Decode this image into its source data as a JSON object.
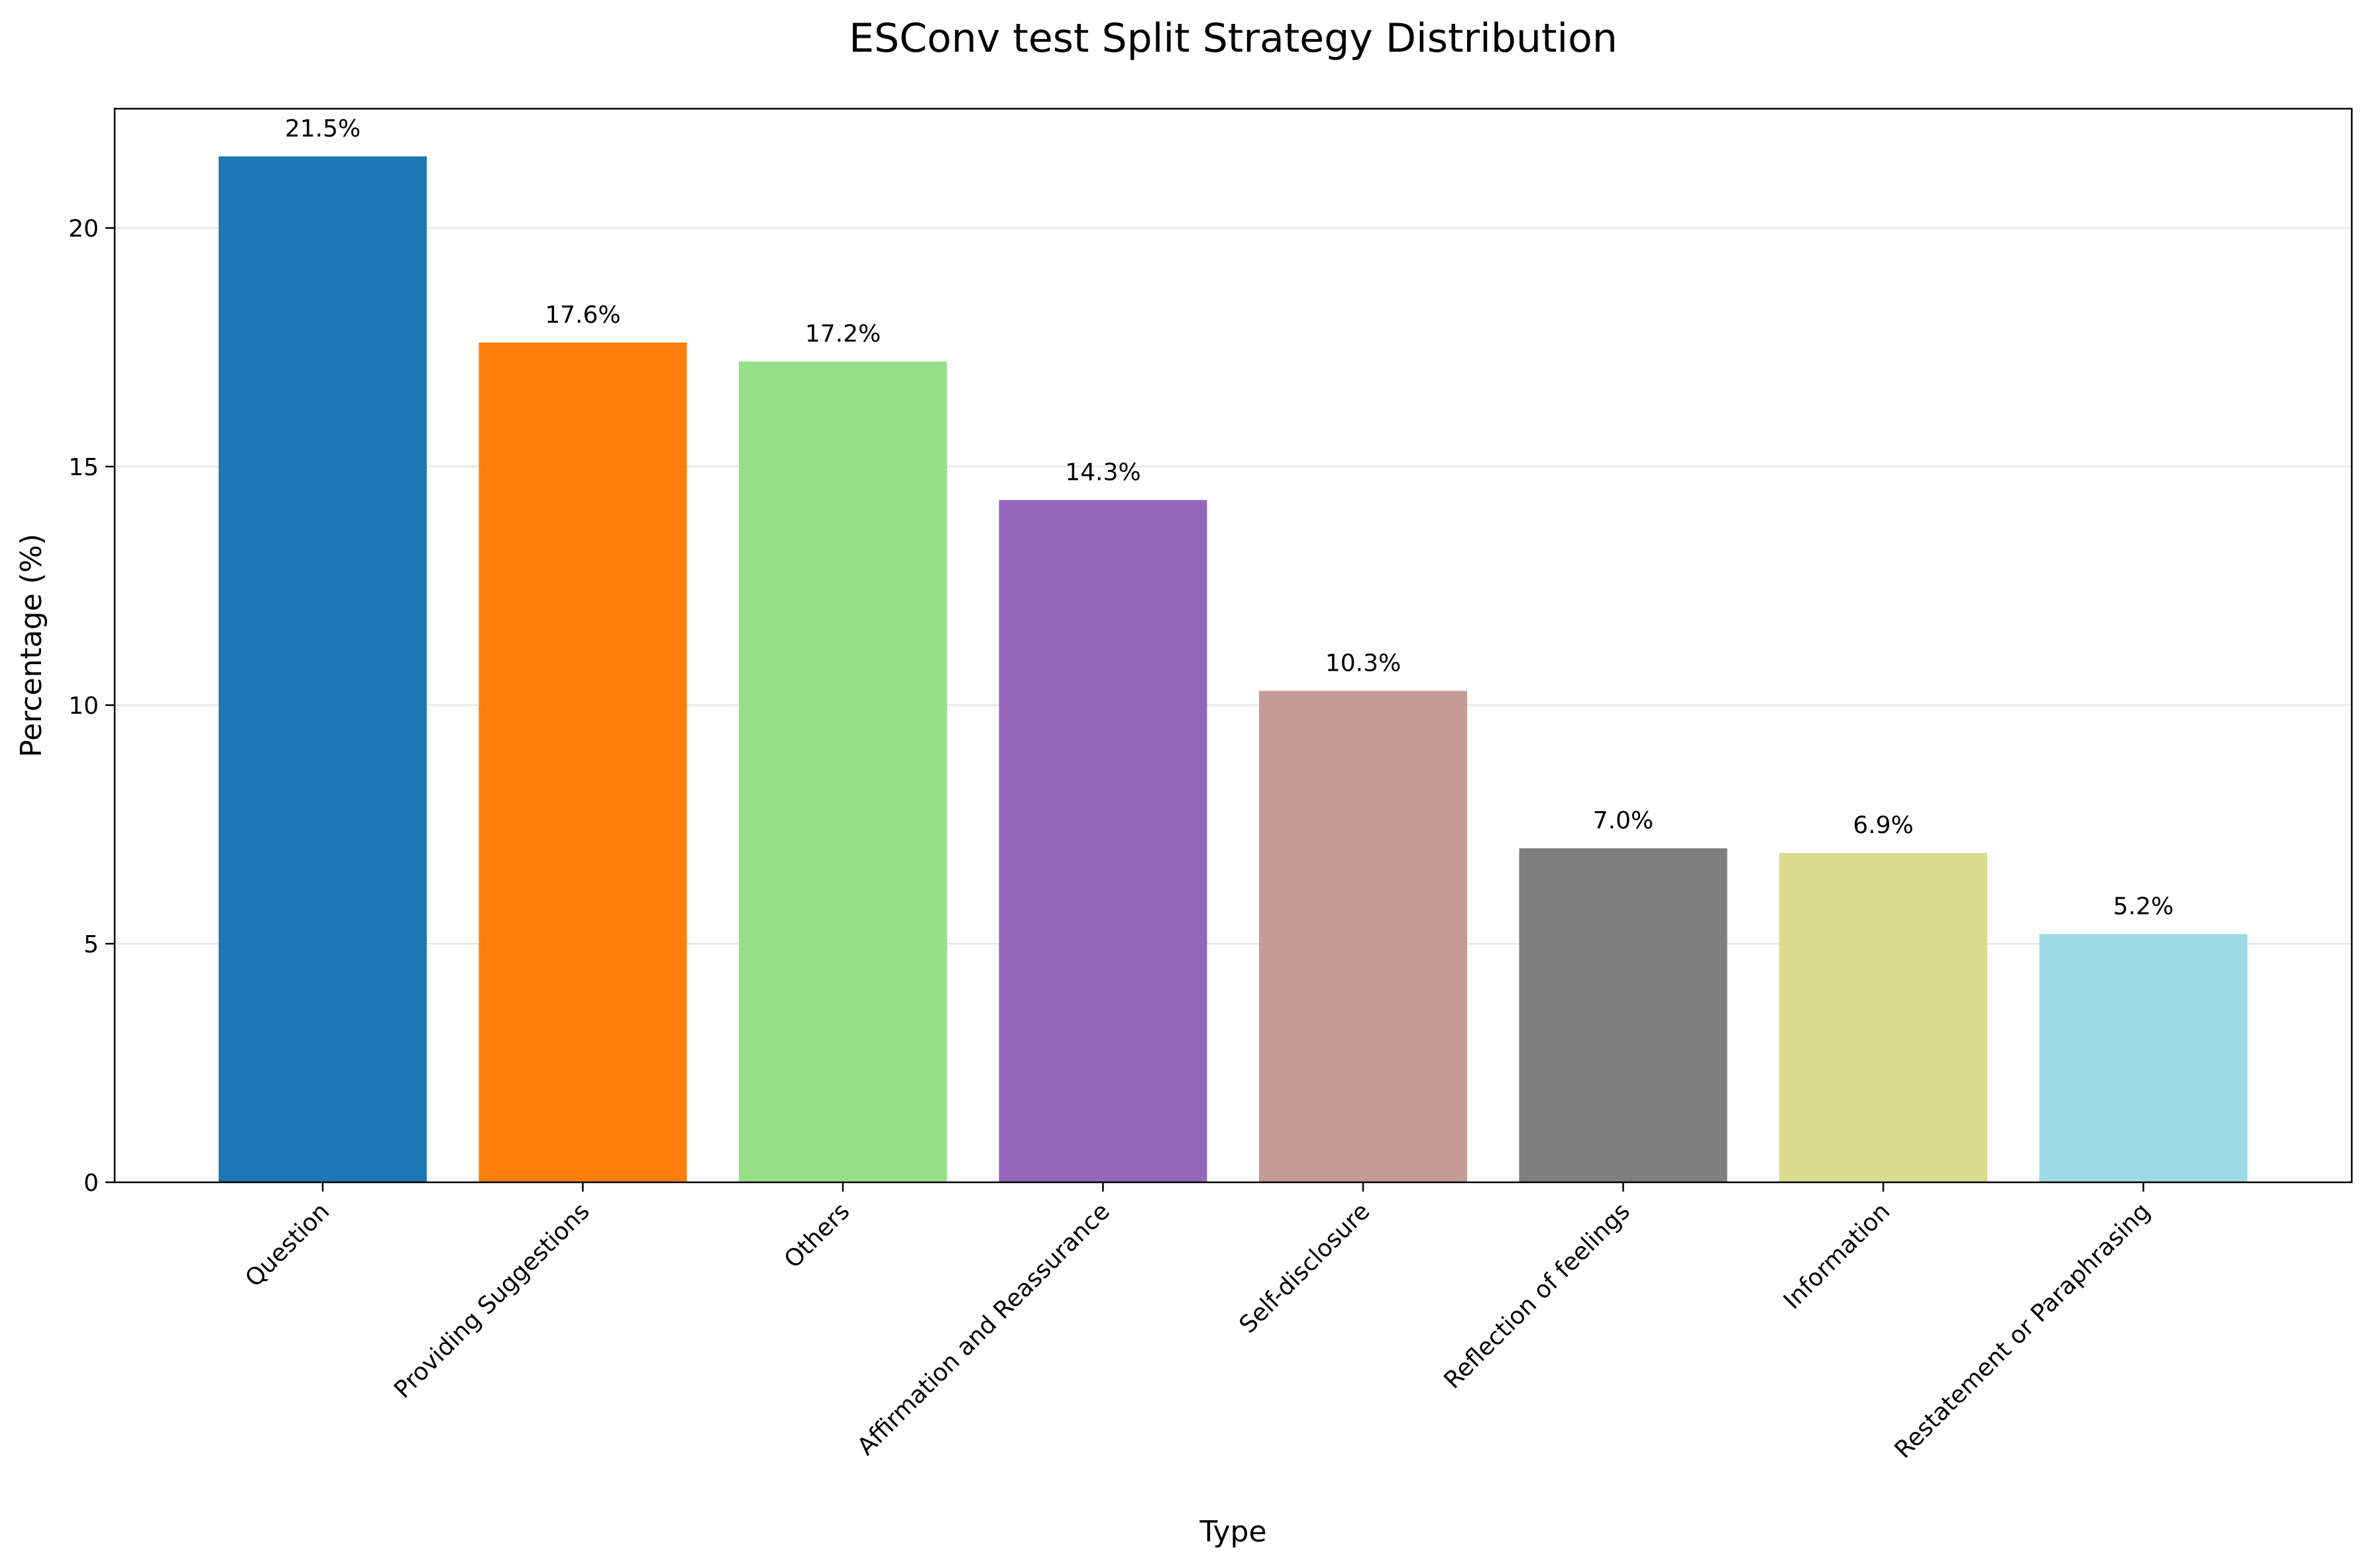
{
  "chart_data": {
    "type": "bar",
    "title": "ESConv test Split Strategy Distribution",
    "xlabel": "Type",
    "ylabel": "Percentage (%)",
    "categories": [
      "Question",
      "Providing Suggestions",
      "Others",
      "Affirmation and Reassurance",
      "Self-disclosure",
      "Reflection of feelings",
      "Information",
      "Restatement or Paraphrasing"
    ],
    "values": [
      21.5,
      17.6,
      17.2,
      14.3,
      10.3,
      7.0,
      6.9,
      5.2
    ],
    "data_labels": [
      "21.5%",
      "17.6%",
      "17.2%",
      "14.3%",
      "10.3%",
      "7.0%",
      "6.9%",
      "5.2%"
    ],
    "colors": [
      "#1f77b4",
      "#ff7f0e",
      "#98df8a",
      "#9467bd",
      "#c49c94",
      "#7f7f7f",
      "#dbdb8d",
      "#9edae5"
    ],
    "ylim": [
      0,
      22.5
    ],
    "yticks": [
      0,
      5,
      10,
      15,
      20
    ],
    "ytick_labels": [
      "0",
      "5",
      "10",
      "15",
      "20"
    ],
    "grid": "horizontal"
  }
}
